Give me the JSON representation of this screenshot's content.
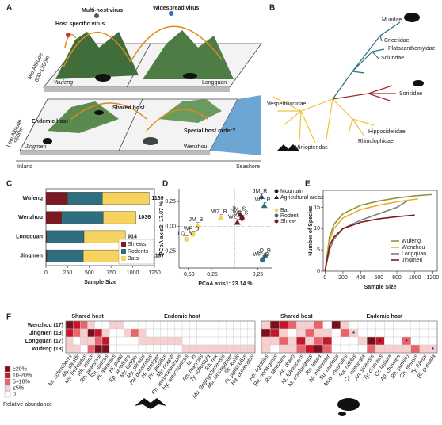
{
  "illustration": {
    "label": "A",
    "host_specific": "Host specific virus",
    "multi_host": "Multi-host virus",
    "widespread": "Widespread virus",
    "mid_altitude": "Mid Altitude",
    "mid_range": "600-1200m",
    "low_altitude": "Low Altitude",
    "low_range": "<500m",
    "wufeng": "Wufeng",
    "longquan": "Longquan",
    "jingmen": "Jingmen",
    "wenzhou": "Wenzhou",
    "shared_host": "Shared host",
    "endemic_host": "Endemic host",
    "special_host": "Special host order?",
    "inland": "Inland",
    "seashore": "Seashore"
  },
  "tree": {
    "label": "B",
    "families": [
      "Muridae",
      "Cricetidae",
      "Platacanthomyidae",
      "Sciuridae",
      "Soricidae",
      "Vespertilionidae",
      "Hipposideridae",
      "Rhinolophidae",
      "Miniopteridae"
    ]
  },
  "chart_data": [
    {
      "type": "bar",
      "panel": "C",
      "orientation": "horizontal",
      "stacked": true,
      "categories": [
        "Wufeng",
        "Wenzhou",
        "Longquan",
        "Jingmen"
      ],
      "series": [
        {
          "name": "Shrews",
          "color": "#7b1a22",
          "values": [
            250,
            180,
            8,
            10
          ]
        },
        {
          "name": "Rodents",
          "color": "#2f6e7f",
          "values": [
            400,
            480,
            430,
            420
          ]
        },
        {
          "name": "Bats",
          "color": "#f6d35e",
          "values": [
            539,
            376,
            476,
            767
          ]
        }
      ],
      "totals": [
        1189,
        1036,
        914,
        1197
      ],
      "xlabel": "Sample Size",
      "xlim": [
        0,
        1250
      ],
      "xticks": [
        0,
        250,
        500,
        750,
        1000,
        1250
      ]
    },
    {
      "type": "scatter",
      "panel": "D",
      "xlabel": "PCoA axis1:  23.14 %",
      "ylabel": "PCoA axis2:  17.07 %",
      "xlim": [
        -0.6,
        0.4
      ],
      "ylim": [
        -0.42,
        0.38
      ],
      "xticks": [
        {
          "value": -0.5,
          "label": "-0,50"
        },
        {
          "value": -0.25,
          "label": "-0,25"
        },
        {
          "value": 0.25,
          "label": "0,25"
        }
      ],
      "yticks": [
        {
          "value": -0.25,
          "label": "-0,25"
        },
        {
          "value": 0,
          "label": "0,00"
        },
        {
          "value": 0.25,
          "label": "0,25"
        }
      ],
      "reference_lines": {
        "x": 0,
        "y": 0
      },
      "shape_legend": [
        {
          "label": "Mountain",
          "shape": "circle"
        },
        {
          "label": "Agricultural areas",
          "shape": "triangle"
        }
      ],
      "color_legend": [
        {
          "label": "Bat",
          "color": "#f6d35e"
        },
        {
          "label": "Rodent",
          "color": "#2f6e7f"
        },
        {
          "label": "Shrew",
          "color": "#7b1a22"
        }
      ],
      "points": [
        {
          "label": "JM_R",
          "x": 0.29,
          "y": 0.3,
          "shape": "triangle",
          "color": "#2f6e7f"
        },
        {
          "label": "WZ_R",
          "x": 0.32,
          "y": 0.21,
          "shape": "triangle",
          "color": "#2f6e7f"
        },
        {
          "label": "JM_S",
          "x": 0.06,
          "y": 0.12,
          "shape": "triangle",
          "color": "#7b1a22"
        },
        {
          "label": "WF_S",
          "x": 0.08,
          "y": 0.08,
          "shape": "circle",
          "color": "#7b1a22"
        },
        {
          "label": "WZ_S",
          "x": 0.03,
          "y": 0.04,
          "shape": "triangle",
          "color": "#7b1a22"
        },
        {
          "label": "WZ_B",
          "x": -0.15,
          "y": 0.09,
          "shape": "triangle",
          "color": "#f6d35e"
        },
        {
          "label": "JM_B",
          "x": -0.4,
          "y": 0.01,
          "shape": "triangle",
          "color": "#f6d35e"
        },
        {
          "label": "WF_B",
          "x": -0.45,
          "y": -0.08,
          "shape": "circle",
          "color": "#f6d35e"
        },
        {
          "label": "LQ_B",
          "x": -0.52,
          "y": -0.13,
          "shape": "circle",
          "color": "#f6d35e"
        },
        {
          "label": "LQ_R",
          "x": 0.33,
          "y": -0.3,
          "shape": "circle",
          "color": "#2f6e7f"
        },
        {
          "label": "WF_R",
          "x": 0.3,
          "y": -0.34,
          "shape": "circle",
          "color": "#2f6e7f"
        }
      ]
    },
    {
      "type": "line",
      "panel": "E",
      "xlabel": "Sample Size",
      "ylabel": "Number of Species",
      "xlim": [
        -20,
        1250
      ],
      "ylim": [
        0,
        19
      ],
      "xticks": [
        0,
        200,
        400,
        600,
        800,
        1000,
        1200
      ],
      "yticks": [
        0,
        5,
        10,
        15
      ],
      "series": [
        {
          "name": "Wufeng",
          "color": "#8a9a3a",
          "x": [
            0,
            50,
            100,
            200,
            400,
            600,
            800,
            1000,
            1189
          ],
          "values": [
            0,
            8,
            11,
            13.5,
            15.5,
            16.5,
            17.2,
            17.7,
            18
          ]
        },
        {
          "name": "Wenzhou",
          "color": "#f0a830",
          "x": [
            0,
            50,
            100,
            200,
            400,
            600,
            800,
            1036
          ],
          "values": [
            0,
            7,
            10,
            12.5,
            14.5,
            15.5,
            16.3,
            17
          ]
        },
        {
          "name": "Longquan",
          "color": "#7f7f7f",
          "x": [
            0,
            50,
            100,
            200,
            400,
            600,
            800,
            914
          ],
          "values": [
            0,
            5,
            7.5,
            10,
            12,
            13.5,
            15,
            16.5
          ]
        },
        {
          "name": "Jingmen",
          "color": "#7b1a22",
          "x": [
            0,
            50,
            100,
            200,
            400,
            600,
            800,
            1000
          ],
          "values": [
            0,
            6,
            8,
            10,
            11.5,
            12.3,
            12.8,
            13.2
          ]
        }
      ]
    },
    {
      "type": "heatmap",
      "panel": "F",
      "rows": [
        "Wenzhou (17)",
        "Jingmen (13)",
        "Longquan (17)",
        "Wufeng (18)"
      ],
      "blocks": [
        {
          "groups": [
            {
              "name": "Shared host",
              "columns": [
                "Mi. schreibersii",
                "My. davidii",
                "My. fimbriatus",
                "Rh. affinis",
                "Rh. pearsonii",
                "Rh. sinicus"
              ]
            },
            {
              "name": "Endemic host",
              "columns": [
                "Pi. abramus",
                "Hi. pratti",
                "Ep. serotinus",
                "My. laniger",
                "My. pilosus",
                "Hy. pulveratus",
                "Hi. armiger",
                "Rh. pusillus",
                "My. ricketti",
                "Rh. ferrumequinum",
                "Hy. alaschanicus",
                "Ia. io",
                "Rh. macrotis",
                "Ty. robustula",
                "Rh. rex",
                "Mu. fanjingshanensis",
                "Mu. leucogaster",
                "Sc. kuhlii",
                "Pi. pipistrellus",
                "Ha. pulveratus"
              ]
            }
          ],
          "values": [
            [
              25,
              15,
              7,
              3,
              0,
              0,
              3,
              3,
              0,
              0,
              0,
              0,
              0,
              0,
              0,
              0,
              0,
              0,
              0,
              0,
              0,
              0,
              0,
              0,
              0,
              0
            ],
            [
              15,
              7,
              3,
              25,
              15,
              3,
              0,
              0,
              3,
              7,
              3,
              0,
              0,
              0,
              0,
              0,
              0,
              0,
              0,
              0,
              0,
              0,
              0,
              0,
              0,
              0
            ],
            [
              3,
              0,
              3,
              3,
              7,
              15,
              0,
              0,
              0,
              0,
              3,
              3,
              3,
              3,
              3,
              3,
              0,
              0,
              0,
              0,
              0,
              0,
              0,
              0,
              0,
              0
            ],
            [
              3,
              3,
              0,
              7,
              25,
              25,
              0,
              0,
              0,
              0,
              0,
              0,
              0,
              0,
              0,
              0,
              3,
              3,
              3,
              3,
              3,
              3,
              3,
              3,
              3,
              3
            ]
          ],
          "annotations": []
        },
        {
          "groups": [
            {
              "name": "Shared host",
              "columns": [
                "Ap. agrarius",
                "Ra. norvegicus",
                "Ra. tanezumi",
                "Ap. draco",
                "Ni. fulvescens",
                "Ni. confucianus",
                "Ra. losea",
                "Ni. niviventer"
              ]
            },
            {
              "name": "Endemic host",
              "columns": [
                "Su. murinus",
                "Mus. musculus",
                "Ra. nitidus",
                "Cr. attenuata",
                "An. sinensis",
                "Ty. cinereus",
                "Cr. lasiura",
                "Ap. chevrieri",
                "Rh. pumilio",
                "Ch. eleusis",
                "Ty. fulvus",
                "Bl. griselda"
              ]
            }
          ],
          "values": [
            [
              3,
              25,
              15,
              7,
              3,
              3,
              7,
              0,
              25,
              3,
              0,
              0,
              0,
              0,
              0,
              0,
              0,
              0,
              0,
              0
            ],
            [
              25,
              15,
              3,
              0,
              3,
              7,
              3,
              3,
              0,
              7,
              3,
              0,
              0,
              0,
              0,
              0,
              0,
              0,
              0,
              0
            ],
            [
              3,
              3,
              7,
              3,
              15,
              3,
              7,
              15,
              0,
              0,
              0,
              3,
              25,
              15,
              0,
              0,
              7,
              0,
              0,
              0
            ],
            [
              3,
              0,
              3,
              3,
              7,
              15,
              25,
              7,
              0,
              0,
              0,
              0,
              7,
              3,
              3,
              3,
              3,
              7,
              3,
              3
            ]
          ],
          "annotations": [
            {
              "row": 0,
              "col": 8,
              "text": "*"
            },
            {
              "row": 1,
              "col": 10,
              "text": "*"
            },
            {
              "row": 2,
              "col": 12,
              "text": "*"
            },
            {
              "row": 2,
              "col": 13,
              "text": "*"
            },
            {
              "row": 2,
              "col": 16,
              "text": "*"
            },
            {
              "row": 3,
              "col": 19,
              "text": "*"
            }
          ]
        }
      ],
      "legend": [
        {
          "label": "≥20%",
          "color": "#7a0f1d",
          "min": 20
        },
        {
          "label": "10-20%",
          "color": "#c4172c",
          "min": 10
        },
        {
          "label": "5–10%",
          "color": "#e9636b",
          "min": 5
        },
        {
          "label": "≤5%",
          "color": "#f8cfcf",
          "min": 0
        },
        {
          "label": "0",
          "color": "#ffffff",
          "value": 0
        }
      ],
      "legend_title": "Relative abundance"
    }
  ]
}
